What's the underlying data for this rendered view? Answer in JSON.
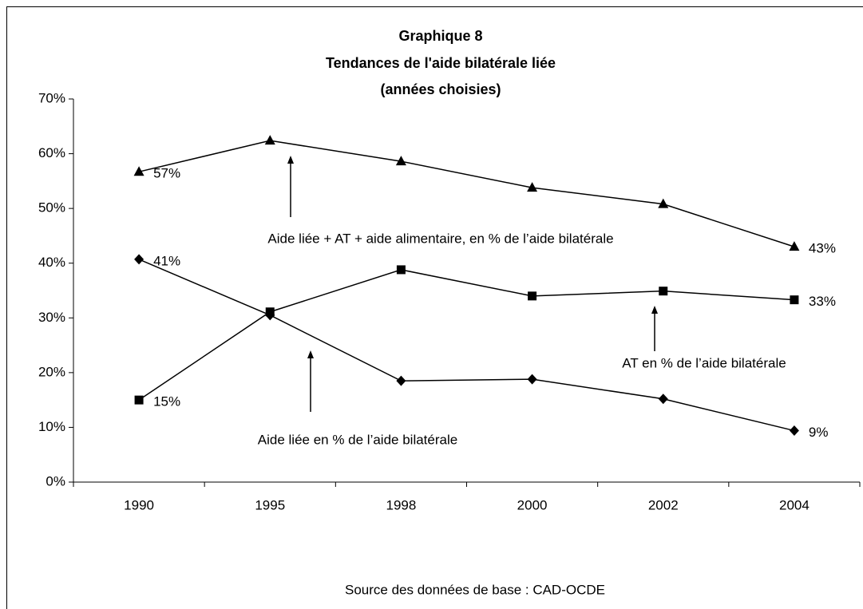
{
  "chart_data": {
    "type": "line",
    "title": [
      "Graphique 8",
      "Tendances de l'aide bilatérale liée",
      "(années choisies)"
    ],
    "categories": [
      "1990",
      "1995",
      "1998",
      "2000",
      "2002",
      "2004"
    ],
    "series": [
      {
        "name": "Aide liée + AT + aide alimentaire, en %  de l’aide bilatérale",
        "color": "#000000",
        "marker": "triangle",
        "values": [
          56.7,
          62.4,
          58.6,
          53.8,
          50.8,
          43.0
        ],
        "value_labels": [
          "57%",
          null,
          null,
          null,
          null,
          "43%"
        ]
      },
      {
        "name": "AT en %  de l’aide bilatérale",
        "color": "#000000",
        "marker": "square",
        "values": [
          15,
          31.1,
          38.8,
          34.0,
          34.9,
          33.3
        ],
        "value_labels": [
          "15%",
          null,
          null,
          null,
          null,
          "33%"
        ]
      },
      {
        "name": "Aide liée en %  de l’aide bilatérale",
        "color": "#000000",
        "marker": "diamond",
        "values": [
          40.7,
          30.5,
          18.5,
          18.8,
          15.2,
          9.4
        ],
        "value_labels": [
          "41%",
          null,
          null,
          null,
          null,
          "9%"
        ]
      }
    ],
    "ylim": [
      0,
      70
    ],
    "yticks": [
      {
        "value": 0,
        "label": "0%"
      },
      {
        "value": 10,
        "label": "10%"
      },
      {
        "value": 20,
        "label": "20%"
      },
      {
        "value": 30,
        "label": "30%"
      },
      {
        "value": 40,
        "label": "40%"
      },
      {
        "value": 50,
        "label": "50%"
      },
      {
        "value": 60,
        "label": "60%"
      },
      {
        "value": 70,
        "label": "70%"
      }
    ],
    "grid": false,
    "source": "Source des données de base : CAD-OCDE"
  }
}
